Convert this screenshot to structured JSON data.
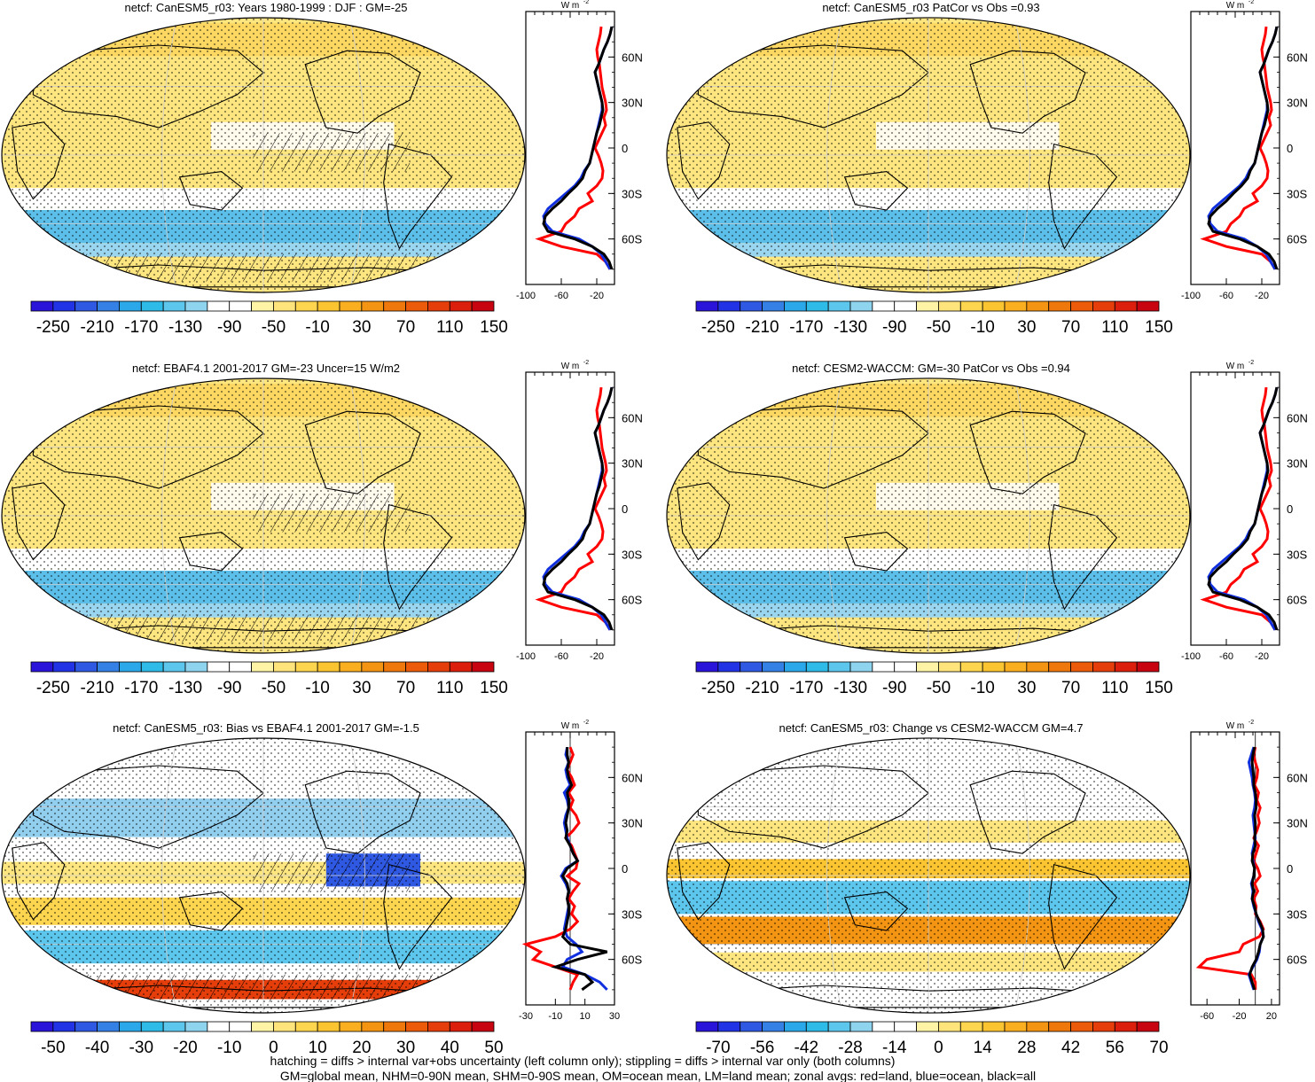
{
  "domain": "climate model evaluation figure",
  "variable": "netcf",
  "panels": [
    {
      "id": "p1",
      "title": "netcf: CanESM5_r03: Years 1980-1999 : DJF : GM=-25",
      "map_type": "absolute",
      "colorbar": {
        "labels": [
          "-250",
          "-210",
          "-170",
          "-130",
          "-90",
          "-50",
          "-10",
          "30",
          "70",
          "110",
          "150"
        ]
      },
      "zonal": {
        "units": "W m",
        "units_exp": "-2",
        "xticks": [
          "-100",
          "-60",
          "-20"
        ],
        "xlim": [
          -100,
          0
        ],
        "lat_labels": [
          "60N",
          "30N",
          "0",
          "30S",
          "60S"
        ]
      }
    },
    {
      "id": "p2",
      "title": "netcf: CanESM5_r03 PatCor vs Obs =0.93",
      "map_type": "absolute",
      "colorbar": {
        "labels": [
          "-250",
          "-210",
          "-170",
          "-130",
          "-90",
          "-50",
          "-10",
          "30",
          "70",
          "110",
          "150"
        ]
      },
      "zonal": {
        "units": "W m",
        "units_exp": "-2",
        "xticks": [
          "-100",
          "-60",
          "-20"
        ],
        "xlim": [
          -100,
          0
        ],
        "lat_labels": [
          "60N",
          "30N",
          "0",
          "30S",
          "60S"
        ]
      }
    },
    {
      "id": "p3",
      "title": "netcf: EBAF4.1 2001-2017 GM=-23 Uncer=15 W/m2",
      "map_type": "absolute",
      "colorbar": {
        "labels": [
          "-250",
          "-210",
          "-170",
          "-130",
          "-90",
          "-50",
          "-10",
          "30",
          "70",
          "110",
          "150"
        ]
      },
      "zonal": {
        "units": "W m",
        "units_exp": "-2",
        "xticks": [
          "-100",
          "-60",
          "-20"
        ],
        "xlim": [
          -100,
          0
        ],
        "lat_labels": [
          "60N",
          "30N",
          "0",
          "30S",
          "60S"
        ]
      }
    },
    {
      "id": "p4",
      "title": "netcf: CESM2-WACCM: GM=-30 PatCor vs Obs =0.94",
      "map_type": "absolute",
      "colorbar": {
        "labels": [
          "-250",
          "-210",
          "-170",
          "-130",
          "-90",
          "-50",
          "-10",
          "30",
          "70",
          "110",
          "150"
        ]
      },
      "zonal": {
        "units": "W m",
        "units_exp": "-2",
        "xticks": [
          "-100",
          "-60",
          "-20"
        ],
        "xlim": [
          -100,
          0
        ],
        "lat_labels": [
          "60N",
          "30N",
          "0",
          "30S",
          "60S"
        ]
      }
    },
    {
      "id": "p5",
      "title": "netcf: CanESM5_r03: Bias vs EBAF4.1 2001-2017 GM=-1.5",
      "map_type": "bias",
      "colorbar": {
        "labels": [
          "-50",
          "-40",
          "-30",
          "-20",
          "-10",
          "0",
          "10",
          "20",
          "30",
          "40",
          "50"
        ]
      },
      "zonal": {
        "units": "W m",
        "units_exp": "-2",
        "xticks": [
          "-30",
          "-10",
          "10",
          "30"
        ],
        "xlim": [
          -30,
          30
        ],
        "lat_labels": [
          "60N",
          "30N",
          "0",
          "30S",
          "60S"
        ]
      }
    },
    {
      "id": "p6",
      "title": "netcf: CanESM5_r03: Change vs CESM2-WACCM GM=4.7",
      "map_type": "change",
      "colorbar": {
        "labels": [
          "-70",
          "-56",
          "-42",
          "-28",
          "-14",
          "0",
          "14",
          "28",
          "42",
          "56",
          "70"
        ]
      },
      "zonal": {
        "units": "W m",
        "units_exp": "-2",
        "xticks": [
          "-60",
          "-20",
          "20"
        ],
        "xlim": [
          -80,
          30
        ],
        "lat_labels": [
          "60N",
          "30N",
          "0",
          "30S",
          "60S"
        ]
      }
    }
  ],
  "colorbar_colors": [
    "#2a14d9",
    "#2233e6",
    "#2f59e3",
    "#3580e4",
    "#2ba8ea",
    "#2fbbe8",
    "#5dc6ec",
    "#8fd4ee",
    "#ffffff",
    "#ffffff",
    "#fff3a6",
    "#ffe47b",
    "#fdd54f",
    "#fbc531",
    "#f9af1f",
    "#f49413",
    "#ef780c",
    "#eb5b0a",
    "#e53e0a",
    "#dc1f0c",
    "#c7040f"
  ],
  "zonal_data": {
    "absolute_panels": {
      "lat": [
        80,
        75,
        70,
        65,
        60,
        55,
        50,
        45,
        40,
        35,
        30,
        25,
        20,
        15,
        10,
        5,
        0,
        -5,
        -10,
        -15,
        -20,
        -25,
        -30,
        -35,
        -40,
        -45,
        -50,
        -55,
        -60,
        -65,
        -70,
        -75,
        -80
      ],
      "land": [
        -15,
        -16,
        -18,
        -20,
        -19,
        -17,
        -16,
        -15,
        -14,
        -12,
        -10,
        -9,
        -12,
        -10,
        -14,
        -18,
        -22,
        -18,
        -15,
        -13,
        -14,
        -20,
        -30,
        -25,
        -40,
        -45,
        -55,
        -60,
        -85,
        -60,
        -20,
        -10,
        -5
      ],
      "ocean": [
        -3,
        -5,
        -8,
        -12,
        -15,
        -18,
        -22,
        -20,
        -18,
        -16,
        -14,
        -14,
        -16,
        -18,
        -20,
        -22,
        -24,
        -26,
        -28,
        -34,
        -38,
        -45,
        -55,
        -65,
        -75,
        -80,
        -78,
        -70,
        -40,
        -25,
        -15,
        -10,
        -5
      ],
      "all": [
        -3,
        -5,
        -8,
        -12,
        -15,
        -18,
        -22,
        -20,
        -18,
        -16,
        -14,
        -13,
        -15,
        -17,
        -20,
        -22,
        -24,
        -26,
        -28,
        -33,
        -36,
        -43,
        -52,
        -60,
        -70,
        -78,
        -80,
        -75,
        -45,
        -25,
        -12,
        -6,
        -3
      ]
    },
    "bias_panel": {
      "lat": [
        80,
        75,
        70,
        65,
        60,
        55,
        50,
        45,
        40,
        35,
        30,
        25,
        20,
        15,
        10,
        5,
        0,
        -5,
        -10,
        -15,
        -20,
        -25,
        -30,
        -35,
        -40,
        -45,
        -50,
        -55,
        -60,
        -65,
        -70,
        -75,
        -80
      ],
      "land": [
        0,
        2,
        0,
        -2,
        1,
        3,
        -1,
        2,
        0,
        4,
        6,
        2,
        -3,
        1,
        3,
        5,
        4,
        -2,
        6,
        2,
        -1,
        3,
        1,
        5,
        0,
        -10,
        -30,
        -20,
        -25,
        -10,
        5,
        2,
        0
      ],
      "ocean": [
        -2,
        -3,
        -1,
        -3,
        -2,
        0,
        -4,
        -2,
        -1,
        -3,
        -4,
        -3,
        -2,
        0,
        2,
        5,
        -3,
        -6,
        -3,
        -1,
        -2,
        -1,
        -2,
        -3,
        -4,
        -2,
        4,
        8,
        -2,
        -5,
        10,
        20,
        25
      ],
      "all": [
        -2,
        -2,
        -1,
        -2,
        -1,
        1,
        -2,
        -1,
        -1,
        -2,
        -3,
        -2,
        -3,
        0,
        2,
        5,
        -2,
        -5,
        -2,
        -1,
        -2,
        -1,
        -1,
        -2,
        -3,
        -5,
        0,
        25,
        5,
        -10,
        10,
        15,
        8
      ]
    },
    "change_panel": {
      "lat": [
        80,
        75,
        70,
        65,
        60,
        55,
        50,
        45,
        40,
        35,
        30,
        25,
        20,
        15,
        10,
        5,
        0,
        -5,
        -10,
        -15,
        -20,
        -25,
        -30,
        -35,
        -40,
        -45,
        -50,
        -55,
        -60,
        -65,
        -70,
        -75,
        -80
      ],
      "land": [
        0,
        -2,
        0,
        3,
        2,
        -1,
        4,
        2,
        6,
        3,
        5,
        2,
        -2,
        4,
        1,
        -2,
        3,
        6,
        -1,
        3,
        -2,
        1,
        0,
        6,
        10,
        5,
        -15,
        -20,
        -60,
        -70,
        -5,
        0,
        0
      ],
      "ocean": [
        -2,
        -5,
        -8,
        -6,
        -4,
        -3,
        -1,
        0,
        -1,
        -3,
        -2,
        -1,
        0,
        -2,
        -4,
        -3,
        -1,
        -2,
        -5,
        -3,
        -4,
        -2,
        1,
        4,
        8,
        10,
        6,
        5,
        2,
        -3,
        -8,
        -5,
        -2
      ],
      "all": [
        -1,
        -3,
        -4,
        -3,
        -2,
        -2,
        0,
        1,
        1,
        -1,
        0,
        0,
        -1,
        0,
        -3,
        -4,
        -1,
        -2,
        -4,
        -2,
        -4,
        -1,
        1,
        5,
        9,
        10,
        6,
        4,
        1,
        -4,
        -7,
        -4,
        -1
      ]
    }
  },
  "footer": {
    "line1": "hatching = diffs > internal var+obs uncertainty (left column only); stippling = diffs > internal var only (both columns)",
    "line2": "GM=global mean, NHM=0-90N mean, SHM=0-90S mean, OM=ocean mean, LM=land mean; zonal avgs: red=land, blue=ocean, black=all"
  }
}
